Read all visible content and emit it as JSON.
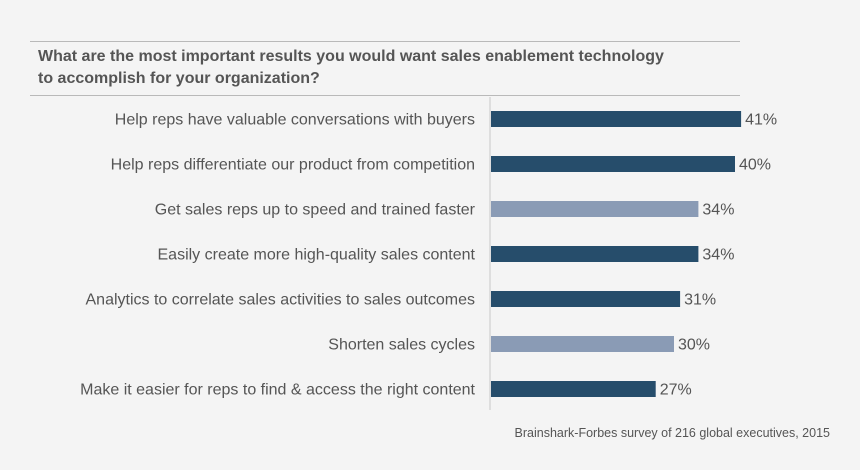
{
  "chart_data": {
    "type": "bar",
    "orientation": "horizontal",
    "title_lines": [
      "What are the most important results you would want sales enablement technology",
      "to accomplish for your organization?"
    ],
    "categories": [
      "Help reps have valuable conversations with buyers",
      "Help reps differentiate our product from competition",
      "Get sales reps up to speed and trained faster",
      "Easily create more high-quality sales content",
      "Analytics to correlate sales activities to sales outcomes",
      "Shorten sales cycles",
      "Make it easier for reps to find & access the right content"
    ],
    "values": [
      41,
      40,
      34,
      34,
      31,
      30,
      27
    ],
    "value_labels": [
      "41%",
      "40%",
      "34%",
      "34%",
      "31%",
      "30%",
      "27%"
    ],
    "bar_colors": [
      "#264d6b",
      "#264d6b",
      "#8a9bb5",
      "#264d6b",
      "#264d6b",
      "#8a9bb5",
      "#264d6b"
    ],
    "xlim": [
      0,
      45
    ],
    "grid": false,
    "legend": "none"
  },
  "source": "Brainshark-Forbes survey of 216 global executives, 2015"
}
